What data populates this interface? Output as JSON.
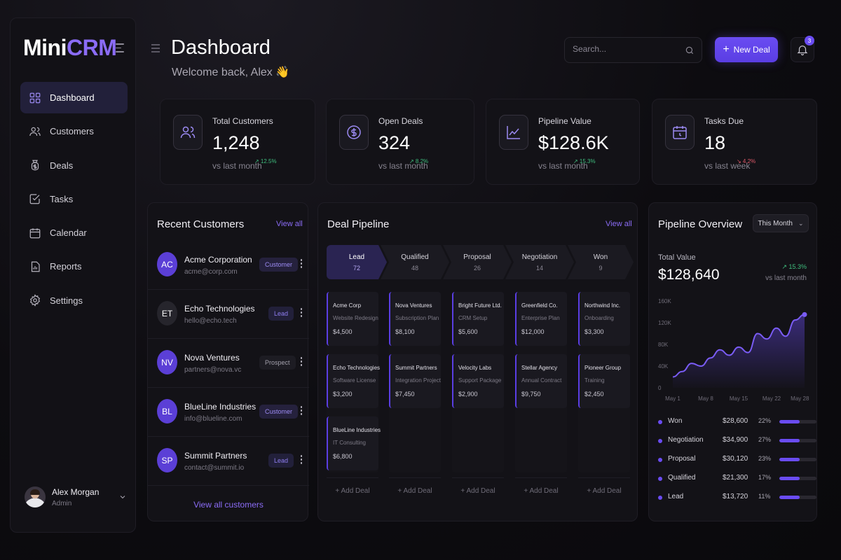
{
  "brand": {
    "mini": "Mini",
    "crm": "CRM"
  },
  "sidebar": {
    "items": [
      {
        "label": "Dashboard",
        "icon": "grid-icon",
        "active": true
      },
      {
        "label": "Customers",
        "icon": "users-icon"
      },
      {
        "label": "Deals",
        "icon": "deal-icon"
      },
      {
        "label": "Tasks",
        "icon": "check-square-icon"
      },
      {
        "label": "Calendar",
        "icon": "calendar-icon"
      },
      {
        "label": "Reports",
        "icon": "chart-icon"
      },
      {
        "label": "Settings",
        "icon": "gear-icon"
      }
    ],
    "user": {
      "name": "Alex Morgan",
      "role": "Admin"
    }
  },
  "header": {
    "title": "Dashboard",
    "welcome": "Welcome back, Alex 👋",
    "search_placeholder": "Search...",
    "new_deal_label": "New Deal",
    "notifications_count": "3"
  },
  "stats": [
    {
      "label": "Total Customers",
      "value": "1,248",
      "sub": "vs last month",
      "change": "↗ 12.5%",
      "icon": "users-icon"
    },
    {
      "label": "Open Deals",
      "value": "324",
      "sub": "vs last month",
      "change": "↗ 8.2%",
      "icon": "dollar-icon"
    },
    {
      "label": "Pipeline Value",
      "value": "$128.6K",
      "sub": "vs last month",
      "change": "↗ 15.3%",
      "icon": "trend-icon"
    },
    {
      "label": "Tasks Due",
      "value": "18",
      "sub": "vs last week",
      "change": "↘ 4.2%",
      "icon": "calendar-icon"
    }
  ],
  "recent_customers": {
    "title": "Recent Customers",
    "view_all": "View all",
    "footer_link": "View all customers",
    "rows": [
      {
        "initials": "AC",
        "name": "Acme Corporation",
        "email": "acme@corp.com",
        "badge": "Customer",
        "badge_type": "customer",
        "avatar_color": "#5b3fd6"
      },
      {
        "initials": "ET",
        "name": "Echo Technologies",
        "email": "hello@echo.tech",
        "badge": "Lead",
        "badge_type": "lead",
        "avatar_color": "#26252c"
      },
      {
        "initials": "NV",
        "name": "Nova Ventures",
        "email": "partners@nova.vc",
        "badge": "Prospect",
        "badge_type": "prospect",
        "avatar_color": "#5b3fd6"
      },
      {
        "initials": "BL",
        "name": "BlueLine Industries",
        "email": "info@blueline.com",
        "badge": "Customer",
        "badge_type": "customer",
        "avatar_color": "#5b3fd6"
      },
      {
        "initials": "SP",
        "name": "Summit Partners",
        "email": "contact@summit.io",
        "badge": "Lead",
        "badge_type": "lead",
        "avatar_color": "#5b3fd6"
      }
    ]
  },
  "pipeline": {
    "title": "Deal Pipeline",
    "view_all": "View all",
    "add_deal": "+ Add Deal",
    "stages": [
      {
        "name": "Lead",
        "count": "72",
        "active": true
      },
      {
        "name": "Qualified",
        "count": "48"
      },
      {
        "name": "Proposal",
        "count": "26"
      },
      {
        "name": "Negotiation",
        "count": "14"
      },
      {
        "name": "Won",
        "count": "9"
      }
    ],
    "columns": [
      [
        {
          "company": "Acme Corp",
          "desc": "Website Redesign",
          "amount": "$4,500"
        },
        {
          "company": "Echo Technologies",
          "desc": "Software License",
          "amount": "$3,200"
        },
        {
          "company": "BlueLine Industries",
          "desc": "IT Consulting",
          "amount": "$6,800"
        }
      ],
      [
        {
          "company": "Nova Ventures",
          "desc": "Subscription Plan",
          "amount": "$8,100"
        },
        {
          "company": "Summit Partners",
          "desc": "Integration Project",
          "amount": "$7,450"
        }
      ],
      [
        {
          "company": "Bright Future Ltd.",
          "desc": "CRM Setup",
          "amount": "$5,600"
        },
        {
          "company": "Velocity Labs",
          "desc": "Support Package",
          "amount": "$2,900"
        }
      ],
      [
        {
          "company": "Greenfield Co.",
          "desc": "Enterprise Plan",
          "amount": "$12,000"
        },
        {
          "company": "Stellar Agency",
          "desc": "Annual Contract",
          "amount": "$9,750"
        }
      ],
      [
        {
          "company": "Northwind Inc.",
          "desc": "Onboarding",
          "amount": "$3,300"
        },
        {
          "company": "Pioneer Group",
          "desc": "Training",
          "amount": "$2,450"
        }
      ]
    ]
  },
  "overview": {
    "title": "Pipeline Overview",
    "period": "This Month",
    "total_label": "Total Value",
    "total_value": "$128,640",
    "change": "↗ 15.3%",
    "change_sub": "vs last month",
    "legend": [
      {
        "name": "Won",
        "amount": "$28,600",
        "pct": "22%",
        "fill": 0.55
      },
      {
        "name": "Negotiation",
        "amount": "$34,900",
        "pct": "27%",
        "fill": 0.55
      },
      {
        "name": "Proposal",
        "amount": "$30,120",
        "pct": "23%",
        "fill": 0.55
      },
      {
        "name": "Qualified",
        "amount": "$21,300",
        "pct": "17%",
        "fill": 0.55
      },
      {
        "name": "Lead",
        "amount": "$13,720",
        "pct": "11%",
        "fill": 0.55
      }
    ]
  },
  "chart_data": {
    "type": "area",
    "x_ticks": [
      "May 1",
      "May 8",
      "May 15",
      "May 22",
      "May 28"
    ],
    "y_ticks": [
      "0",
      "40K",
      "80K",
      "120K",
      "160K"
    ],
    "ylim": [
      0,
      160000
    ],
    "series": [
      {
        "x": [
          1,
          3,
          5,
          7,
          9,
          11,
          13,
          15,
          17,
          19,
          21,
          23,
          25,
          27,
          29
        ],
        "values": [
          20000,
          30000,
          45000,
          40000,
          55000,
          70000,
          60000,
          75000,
          65000,
          100000,
          90000,
          110000,
          95000,
          125000,
          135000
        ]
      }
    ]
  }
}
